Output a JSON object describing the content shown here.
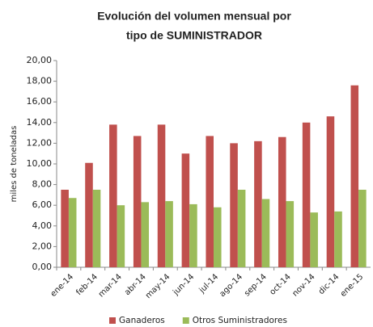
{
  "chart_data": {
    "type": "bar",
    "title": [
      "Evolución del volumen mensual por",
      "tipo de SUMINISTRADOR"
    ],
    "y_label": "miles de toneladas",
    "categories": [
      "ene-14",
      "feb-14",
      "mar-14",
      "abr-14",
      "may-14",
      "jun-14",
      "jul-14",
      "ago-14",
      "sep-14",
      "oct-14",
      "nov-14",
      "dic-14",
      "ene-15"
    ],
    "series": [
      {
        "name": "Ganaderos",
        "color": "#c0504d",
        "values": [
          7.5,
          10.1,
          13.8,
          12.7,
          13.8,
          11.0,
          12.7,
          12.0,
          12.2,
          12.6,
          14.0,
          14.6,
          17.6
        ]
      },
      {
        "name": "Otros Suministradores",
        "color": "#9bbb59",
        "values": [
          6.7,
          7.5,
          6.0,
          6.3,
          6.4,
          6.1,
          5.8,
          7.5,
          6.6,
          6.4,
          5.3,
          5.4,
          7.5
        ]
      }
    ],
    "ylim": [
      0,
      20
    ],
    "yticks": [
      {
        "value": 0,
        "label": "0,00"
      },
      {
        "value": 2,
        "label": "2,00"
      },
      {
        "value": 4,
        "label": "4,00"
      },
      {
        "value": 6,
        "label": "6,00"
      },
      {
        "value": 8,
        "label": "8,00"
      },
      {
        "value": 10,
        "label": "10,00"
      },
      {
        "value": 12,
        "label": "12,00"
      },
      {
        "value": 14,
        "label": "14,00"
      },
      {
        "value": 16,
        "label": "16,00"
      },
      {
        "value": 18,
        "label": "18,00"
      },
      {
        "value": 20,
        "label": "20,00"
      }
    ],
    "grid": false,
    "legend": "bottom"
  }
}
